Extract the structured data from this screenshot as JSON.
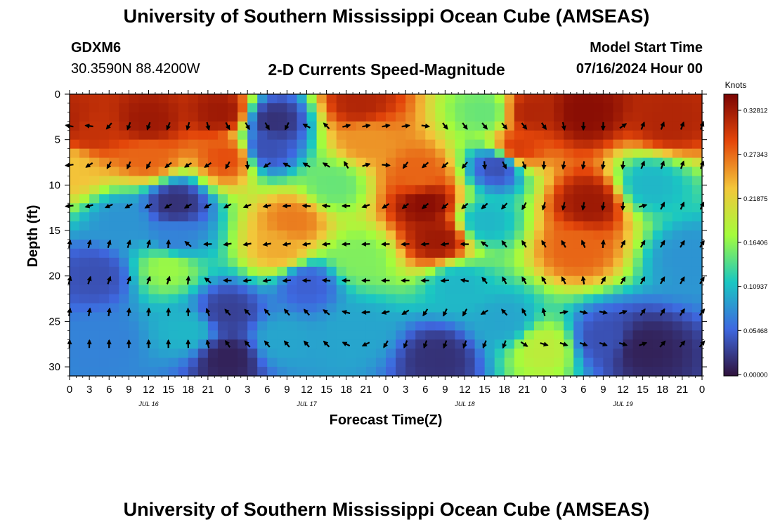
{
  "header": {
    "title": "University of Southern Mississippi Ocean Cube (AMSEAS)",
    "station": "GDXM6",
    "coords": "30.3590N  88.4200W",
    "subtitle": "2-D Currents Speed-Magnitude",
    "model_start_label": "Model Start Time",
    "model_start_value": "07/16/2024 Hour 00"
  },
  "footer": {
    "title": "University of Southern Mississippi Ocean Cube (AMSEAS)"
  },
  "colorbar": {
    "unit_label": "Knots",
    "ticks": [
      "0.00000",
      "0.05468",
      "0.10937",
      "0.16406",
      "0.21875",
      "0.27343",
      "0.32812"
    ],
    "colors": [
      "#30123b",
      "#3e68e0",
      "#1ac7c2",
      "#a4fc3c",
      "#f3c63a",
      "#e4460a",
      "#7a0403"
    ]
  },
  "chart_data": {
    "type": "heatmap",
    "title": "2-D Currents Speed-Magnitude",
    "xlabel": "Forecast Time(Z)",
    "ylabel": "Depth (ft)",
    "x_ticks": [
      "0",
      "3",
      "6",
      "9",
      "12",
      "15",
      "18",
      "21",
      "0",
      "3",
      "6",
      "9",
      "12",
      "15",
      "18",
      "21",
      "0",
      "3",
      "6",
      "9",
      "12",
      "15",
      "18",
      "21",
      "0",
      "3",
      "6",
      "9",
      "12",
      "15",
      "18",
      "21",
      "0"
    ],
    "date_labels": [
      "JUL 16",
      "JUL 17",
      "JUL 18",
      "JUL 19"
    ],
    "xlim": [
      0,
      96
    ],
    "ylim": [
      0,
      31
    ],
    "y_ticks": [
      0,
      5,
      10,
      15,
      20,
      25,
      30
    ],
    "z_range": [
      0.0,
      0.32812
    ],
    "z_unit": "Knots",
    "arrow_depths": [
      3.5,
      7.8,
      12.3,
      16.5,
      20.5,
      24.0,
      27.5
    ],
    "arrow_times": [
      0,
      3,
      6,
      9,
      12,
      15,
      18,
      21,
      24,
      27,
      30,
      33,
      36,
      39,
      42,
      45,
      48,
      51,
      54,
      57,
      60,
      63,
      66,
      69,
      72,
      75,
      78,
      81,
      84,
      87,
      90,
      93,
      96
    ],
    "speed_anchors": [
      {
        "t": 0,
        "d": 3,
        "v": 0.3
      },
      {
        "t": 3,
        "d": 4,
        "v": 0.29
      },
      {
        "t": 0,
        "d": 8,
        "v": 0.22
      },
      {
        "t": 12,
        "d": 3,
        "v": 0.31
      },
      {
        "t": 12,
        "d": 7,
        "v": 0.26
      },
      {
        "t": 23,
        "d": 2,
        "v": 0.31
      },
      {
        "t": 24,
        "d": 7,
        "v": 0.27
      },
      {
        "t": 31,
        "d": 3,
        "v": 0.02
      },
      {
        "t": 30,
        "d": 6,
        "v": 0.04
      },
      {
        "t": 44,
        "d": 1,
        "v": 0.3
      },
      {
        "t": 45,
        "d": 5,
        "v": 0.24
      },
      {
        "t": 34,
        "d": 14,
        "v": 0.25
      },
      {
        "t": 32,
        "d": 17,
        "v": 0.23
      },
      {
        "t": 54,
        "d": 12,
        "v": 0.32
      },
      {
        "t": 56,
        "d": 16,
        "v": 0.31
      },
      {
        "t": 53,
        "d": 9,
        "v": 0.26
      },
      {
        "t": 70,
        "d": 2,
        "v": 0.3
      },
      {
        "t": 68,
        "d": 6,
        "v": 0.28
      },
      {
        "t": 78,
        "d": 2,
        "v": 0.32
      },
      {
        "t": 79,
        "d": 12,
        "v": 0.31
      },
      {
        "t": 77,
        "d": 17,
        "v": 0.26
      },
      {
        "t": 91,
        "d": 3,
        "v": 0.3
      },
      {
        "t": 16,
        "d": 12,
        "v": 0.02
      },
      {
        "t": 16,
        "d": 16,
        "v": 0.07
      },
      {
        "t": 24,
        "d": 24,
        "v": 0.03
      },
      {
        "t": 24,
        "d": 29,
        "v": 0.01
      },
      {
        "t": 36,
        "d": 21,
        "v": 0.05
      },
      {
        "t": 44,
        "d": 18,
        "v": 0.15
      },
      {
        "t": 56,
        "d": 29,
        "v": 0.02
      },
      {
        "t": 63,
        "d": 14,
        "v": 0.1
      },
      {
        "t": 63,
        "d": 2,
        "v": 0.14
      },
      {
        "t": 65,
        "d": 8,
        "v": 0.04
      },
      {
        "t": 72,
        "d": 28,
        "v": 0.18
      },
      {
        "t": 87,
        "d": 28,
        "v": 0.01
      },
      {
        "t": 81,
        "d": 27,
        "v": 0.04
      },
      {
        "t": 5,
        "d": 27,
        "v": 0.07
      },
      {
        "t": 15,
        "d": 19,
        "v": 0.16
      },
      {
        "t": 18,
        "d": 26,
        "v": 0.1
      },
      {
        "t": 44,
        "d": 26,
        "v": 0.09
      },
      {
        "t": 66,
        "d": 25,
        "v": 0.09
      },
      {
        "t": 59,
        "d": 21,
        "v": 0.1
      },
      {
        "t": 94,
        "d": 18,
        "v": 0.08
      },
      {
        "t": 40,
        "d": 10,
        "v": 0.14
      },
      {
        "t": 8,
        "d": 14,
        "v": 0.08
      },
      {
        "t": 4,
        "d": 20,
        "v": 0.04
      },
      {
        "t": 32,
        "d": 27,
        "v": 0.09
      },
      {
        "t": 88,
        "d": 10,
        "v": 0.1
      }
    ],
    "direction_anchors": [
      {
        "t": 0,
        "d": 3,
        "deg": 280
      },
      {
        "t": 10,
        "d": 5,
        "deg": 200
      },
      {
        "t": 18,
        "d": 10,
        "deg": 240
      },
      {
        "t": 28,
        "d": 4,
        "deg": 150
      },
      {
        "t": 36,
        "d": 6,
        "deg": 300
      },
      {
        "t": 46,
        "d": 4,
        "deg": 80
      },
      {
        "t": 56,
        "d": 10,
        "deg": 230
      },
      {
        "t": 66,
        "d": 4,
        "deg": 140
      },
      {
        "t": 78,
        "d": 8,
        "deg": 190
      },
      {
        "t": 92,
        "d": 6,
        "deg": 20
      },
      {
        "t": 10,
        "d": 20,
        "deg": 20
      },
      {
        "t": 30,
        "d": 18,
        "deg": 260
      },
      {
        "t": 50,
        "d": 20,
        "deg": 270
      },
      {
        "t": 70,
        "d": 20,
        "deg": 330
      },
      {
        "t": 90,
        "d": 22,
        "deg": 30
      },
      {
        "t": 12,
        "d": 27,
        "deg": 0
      },
      {
        "t": 32,
        "d": 26,
        "deg": 320
      },
      {
        "t": 56,
        "d": 27,
        "deg": 200
      },
      {
        "t": 80,
        "d": 27,
        "deg": 110
      },
      {
        "t": 94,
        "d": 27,
        "deg": 40
      }
    ]
  }
}
